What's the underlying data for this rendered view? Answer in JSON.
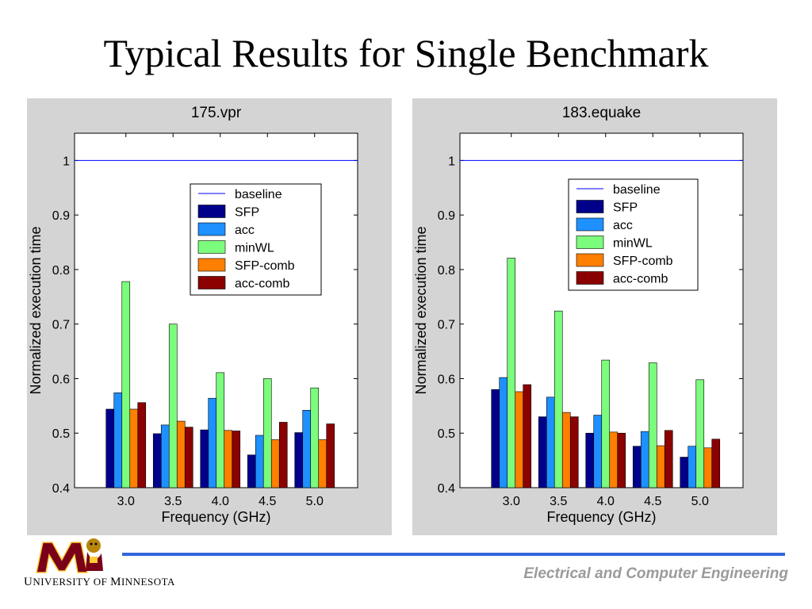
{
  "slide": {
    "title": "Typical Results for Single Benchmark"
  },
  "footer": {
    "department": "Electrical and Computer Engineering",
    "university_u": "U",
    "university_mid": "NIVERSITY OF ",
    "university_m": "M",
    "university_end": "INNESOTA"
  },
  "colors": {
    "baseline": "#0000ff",
    "SFP": "#00008b",
    "acc": "#1e90ff",
    "minWL": "#7cfc7c",
    "SFP-comb": "#ff7f00",
    "acc-comb": "#8b0000",
    "panel_bg": "#d4d4d4",
    "footer_rule": "#3366dd"
  },
  "chart_data": [
    {
      "type": "bar",
      "title": "175.vpr",
      "xlabel": "Frequency (GHz)",
      "ylabel": "Normalized execution time",
      "categories": [
        "3.0",
        "3.5",
        "4.0",
        "4.5",
        "5.0"
      ],
      "ylim": [
        0.4,
        1.05
      ],
      "yticks": [
        "0.4",
        "0.5",
        "0.6",
        "0.7",
        "0.8",
        "0.9",
        "1"
      ],
      "legend_position": "top-right",
      "baseline": {
        "name": "baseline",
        "value": 1.0
      },
      "series": [
        {
          "name": "SFP",
          "values": [
            0.544,
            0.499,
            0.506,
            0.46,
            0.501
          ]
        },
        {
          "name": "acc",
          "values": [
            0.574,
            0.515,
            0.564,
            0.496,
            0.542
          ]
        },
        {
          "name": "minWL",
          "values": [
            0.778,
            0.7,
            0.611,
            0.6,
            0.583
          ]
        },
        {
          "name": "SFP-comb",
          "values": [
            0.544,
            0.522,
            0.505,
            0.488,
            0.488
          ]
        },
        {
          "name": "acc-comb",
          "values": [
            0.556,
            0.511,
            0.504,
            0.52,
            0.517
          ]
        }
      ]
    },
    {
      "type": "bar",
      "title": "183.equake",
      "xlabel": "Frequency (GHz)",
      "ylabel": "Normalized execution time",
      "categories": [
        "3.0",
        "3.5",
        "4.0",
        "4.5",
        "5.0"
      ],
      "ylim": [
        0.4,
        1.05
      ],
      "yticks": [
        "0.4",
        "0.5",
        "0.6",
        "0.7",
        "0.8",
        "0.9",
        "1"
      ],
      "legend_position": "top-right",
      "baseline": {
        "name": "baseline",
        "value": 1.0
      },
      "series": [
        {
          "name": "SFP",
          "values": [
            0.58,
            0.53,
            0.5,
            0.476,
            0.456
          ]
        },
        {
          "name": "acc",
          "values": [
            0.602,
            0.566,
            0.533,
            0.503,
            0.476
          ]
        },
        {
          "name": "minWL",
          "values": [
            0.821,
            0.724,
            0.634,
            0.629,
            0.598
          ]
        },
        {
          "name": "SFP-comb",
          "values": [
            0.576,
            0.538,
            0.502,
            0.477,
            0.473
          ]
        },
        {
          "name": "acc-comb",
          "values": [
            0.589,
            0.53,
            0.5,
            0.505,
            0.489
          ]
        }
      ]
    }
  ]
}
